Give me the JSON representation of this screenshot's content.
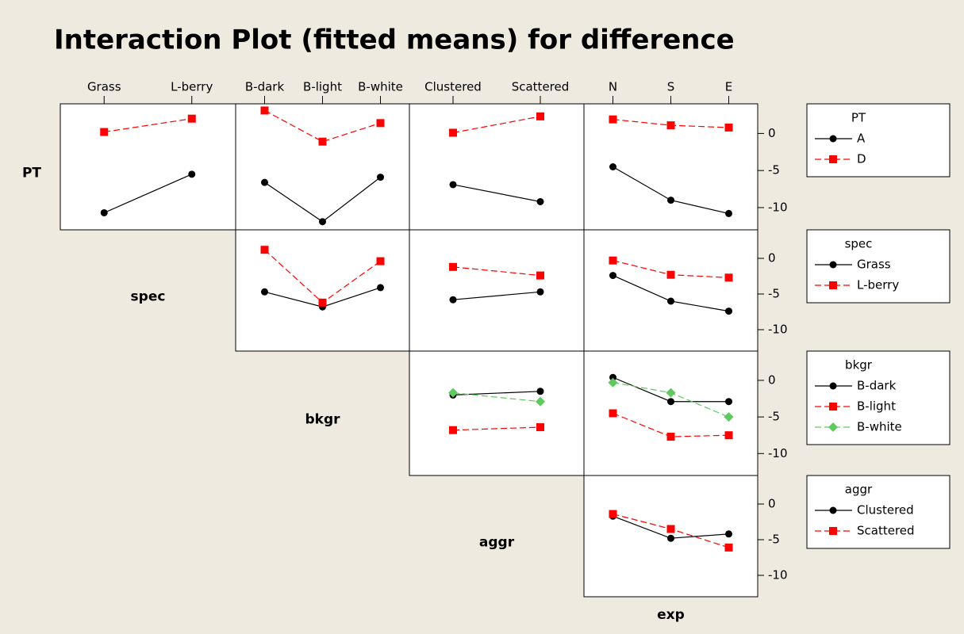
{
  "chart_data": {
    "type": "interaction-matrix",
    "title": "Interaction Plot (fitted means) for difference",
    "factors": [
      {
        "name": "PT",
        "levels": [
          "A",
          "D"
        ]
      },
      {
        "name": "spec",
        "levels": [
          "Grass",
          "L-berry"
        ]
      },
      {
        "name": "bkgr",
        "levels": [
          "B-dark",
          "B-light",
          "B-white"
        ]
      },
      {
        "name": "aggr",
        "levels": [
          "Clustered",
          "Scattered"
        ]
      },
      {
        "name": "exp",
        "levels": [
          "N",
          "S",
          "E"
        ]
      }
    ],
    "colors": [
      "#000000",
      "#ff0000",
      "#5ec95e"
    ],
    "markers": [
      "circle",
      "square",
      "diamond"
    ],
    "ylim": [
      -13,
      4
    ],
    "yticks": [
      0,
      -5,
      -10
    ],
    "panels": [
      {
        "row": 0,
        "col": 1,
        "values": [
          [
            -10.7,
            -5.5
          ],
          [
            0.2,
            2.0
          ]
        ]
      },
      {
        "row": 0,
        "col": 2,
        "values": [
          [
            -6.6,
            -11.9,
            -5.9
          ],
          [
            3.1,
            -1.1,
            1.4
          ]
        ]
      },
      {
        "row": 0,
        "col": 3,
        "values": [
          [
            -6.9,
            -9.2
          ],
          [
            0.1,
            2.3
          ]
        ]
      },
      {
        "row": 0,
        "col": 4,
        "values": [
          [
            -4.5,
            -9.0,
            -10.8
          ],
          [
            1.9,
            1.1,
            0.8
          ]
        ]
      },
      {
        "row": 1,
        "col": 2,
        "values": [
          [
            -4.7,
            -6.8,
            -4.1
          ],
          [
            1.2,
            -6.2,
            -0.4
          ]
        ]
      },
      {
        "row": 1,
        "col": 3,
        "values": [
          [
            -5.8,
            -4.7
          ],
          [
            -1.2,
            -2.4
          ]
        ]
      },
      {
        "row": 1,
        "col": 4,
        "values": [
          [
            -2.4,
            -6.0,
            -7.4
          ],
          [
            -0.3,
            -2.3,
            -2.7
          ]
        ]
      },
      {
        "row": 2,
        "col": 3,
        "values": [
          [
            -2.0,
            -1.5
          ],
          [
            -6.8,
            -6.4
          ],
          [
            -1.7,
            -2.9
          ]
        ]
      },
      {
        "row": 2,
        "col": 4,
        "values": [
          [
            0.4,
            -2.9,
            -2.9
          ],
          [
            -4.5,
            -7.7,
            -7.5
          ],
          [
            -0.3,
            -1.7,
            -5.0
          ]
        ]
      },
      {
        "row": 3,
        "col": 4,
        "values": [
          [
            -1.7,
            -4.8,
            -4.2
          ],
          [
            -1.4,
            -3.5,
            -6.1
          ]
        ]
      }
    ]
  }
}
